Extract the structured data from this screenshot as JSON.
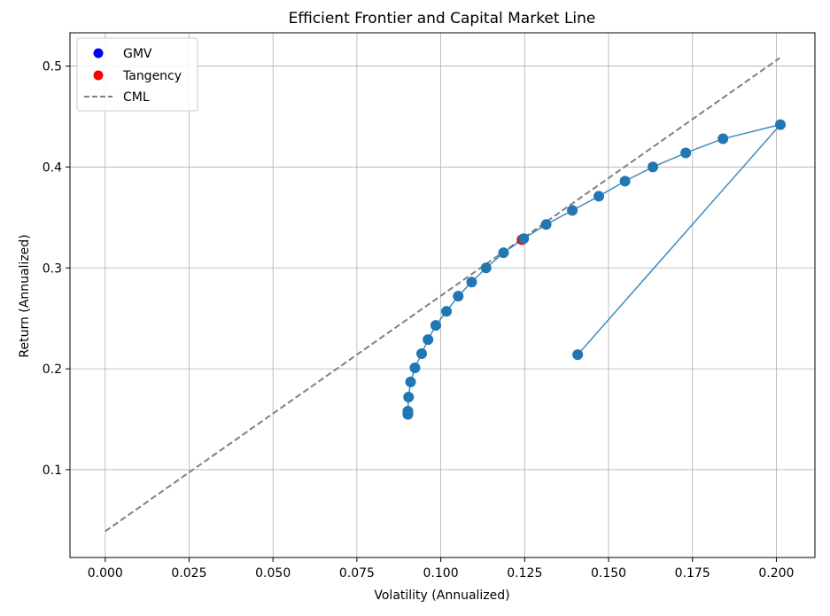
{
  "chart_data": {
    "type": "scatter",
    "title": "Efficient Frontier and Capital Market Line",
    "xlabel": "Volatility (Annualized)",
    "ylabel": "Return (Annualized)",
    "xlim": [
      -0.0105,
      0.2115
    ],
    "ylim": [
      0.013,
      0.533
    ],
    "grid": true,
    "legend_position": "top-left",
    "xticks": [
      {
        "value": 0.0,
        "label": "0.000"
      },
      {
        "value": 0.025,
        "label": "0.025"
      },
      {
        "value": 0.05,
        "label": "0.050"
      },
      {
        "value": 0.075,
        "label": "0.075"
      },
      {
        "value": 0.1,
        "label": "0.100"
      },
      {
        "value": 0.125,
        "label": "0.125"
      },
      {
        "value": 0.15,
        "label": "0.150"
      },
      {
        "value": 0.175,
        "label": "0.175"
      },
      {
        "value": 0.2,
        "label": "0.200"
      }
    ],
    "yticks": [
      {
        "value": 0.1,
        "label": "0.1"
      },
      {
        "value": 0.2,
        "label": "0.2"
      },
      {
        "value": 0.3,
        "label": "0.3"
      },
      {
        "value": 0.4,
        "label": "0.4"
      },
      {
        "value": 0.5,
        "label": "0.5"
      }
    ],
    "frontier": {
      "color": "#1f77b4",
      "points": [
        {
          "x": 0.1408,
          "y": 0.214
        },
        {
          "x": 0.2012,
          "y": 0.442
        },
        {
          "x": 0.1841,
          "y": 0.428
        },
        {
          "x": 0.173,
          "y": 0.414
        },
        {
          "x": 0.1632,
          "y": 0.4
        },
        {
          "x": 0.1549,
          "y": 0.386
        },
        {
          "x": 0.1471,
          "y": 0.371
        },
        {
          "x": 0.1392,
          "y": 0.357
        },
        {
          "x": 0.1314,
          "y": 0.343
        },
        {
          "x": 0.1247,
          "y": 0.329
        },
        {
          "x": 0.1187,
          "y": 0.315
        },
        {
          "x": 0.1135,
          "y": 0.3
        },
        {
          "x": 0.1092,
          "y": 0.286
        },
        {
          "x": 0.1052,
          "y": 0.272
        },
        {
          "x": 0.1017,
          "y": 0.257
        },
        {
          "x": 0.0985,
          "y": 0.243
        },
        {
          "x": 0.0962,
          "y": 0.229
        },
        {
          "x": 0.0943,
          "y": 0.215
        },
        {
          "x": 0.0923,
          "y": 0.201
        },
        {
          "x": 0.091,
          "y": 0.187
        },
        {
          "x": 0.0904,
          "y": 0.172
        },
        {
          "x": 0.0902,
          "y": 0.158
        },
        {
          "x": 0.0902,
          "y": 0.155
        }
      ]
    },
    "gmv": {
      "name": "GMV",
      "color": "#0000ff",
      "x": 0.0902,
      "y": 0.155
    },
    "tangency": {
      "name": "Tangency",
      "color": "#ff0000",
      "x": 0.1242,
      "y": 0.328
    },
    "cml": {
      "name": "CML",
      "color": "#808080",
      "x": [
        0.0,
        0.201
      ],
      "y": [
        0.039,
        0.508
      ]
    }
  }
}
